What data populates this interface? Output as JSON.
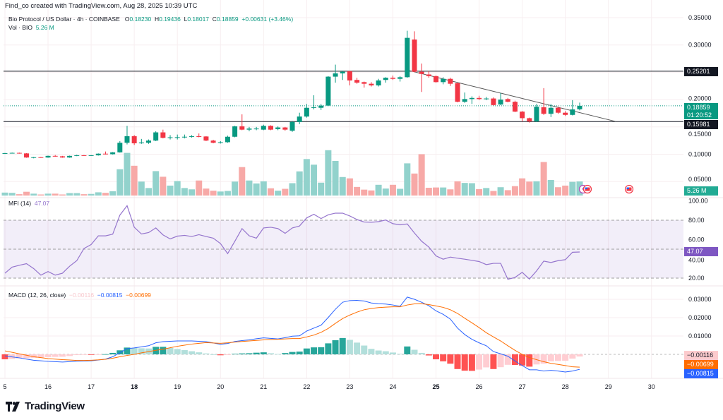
{
  "header": {
    "attribution": "Find_co created with TradingView.com, Aug 28, 2025 10:39 UTC",
    "symbol": "Bio Protocol / US Dollar · 4h · COINBASE",
    "o_label": "O",
    "o": "0.18230",
    "h_label": "H",
    "h": "0.19436",
    "l_label": "L",
    "l": "0.18017",
    "c_label": "C",
    "c": "0.18859",
    "change": "+0.00631 (+3.46%)",
    "vol_label": "Vol · BIO",
    "vol": "5.26 M"
  },
  "price_axis": {
    "ticks": [
      "0.35000",
      "0.30000",
      "0.20000",
      "0.15000",
      "0.10000",
      "0.05000"
    ],
    "resistance": "0.25201",
    "support": "0.15981",
    "last_price": "0.18859",
    "countdown": "01:20:52",
    "volume_badge": "5.26 M"
  },
  "mfi": {
    "label": "MFI (14)",
    "value": "47.07",
    "ticks": [
      "100.00",
      "80.00",
      "60.00",
      "40.00",
      "20.00"
    ]
  },
  "macd": {
    "label": "MACD (12, 26, close)",
    "histogram": "−0.00116",
    "macd": "−0.00815",
    "signal": "−0.00699",
    "ticks": [
      "0.03000",
      "0.02000",
      "0.01000"
    ]
  },
  "x_axis": {
    "ticks": [
      "5",
      "16",
      "17",
      "18",
      "19",
      "20",
      "21",
      "22",
      "23",
      "24",
      "25",
      "26",
      "27",
      "28",
      "29",
      "30"
    ],
    "bold": [
      "18",
      "25"
    ]
  },
  "footer": {
    "brand": "TradingView"
  },
  "colors": {
    "up": "#089981",
    "down": "#f23645",
    "mfi": "#9575cd",
    "macd": "#2962ff",
    "signal": "#ff6d00"
  },
  "icons": [
    "lightning-icon",
    "us-flag-icon"
  ],
  "chart_data": [
    {
      "type": "candlestick",
      "title": "Bio Protocol / US Dollar · 4h · COINBASE",
      "interval": "4h",
      "x_start": "Aug 15",
      "ylim": [
        0.04,
        0.36
      ],
      "horizontal_levels": [
        0.25201,
        0.15981
      ],
      "trendline": [
        [
          56,
          0.254
        ],
        [
          85,
          0.16
        ]
      ],
      "ohlc": [
        [
          0.101,
          0.1025,
          0.1005,
          0.102
        ],
        [
          0.102,
          0.103,
          0.1015,
          0.1025
        ],
        [
          0.1025,
          0.103,
          0.101,
          0.1015
        ],
        [
          0.1015,
          0.102,
          0.0935,
          0.094
        ],
        [
          0.0935,
          0.095,
          0.0925,
          0.0945
        ],
        [
          0.0945,
          0.095,
          0.0935,
          0.094
        ],
        [
          0.094,
          0.0975,
          0.0935,
          0.097
        ],
        [
          0.097,
          0.0985,
          0.0955,
          0.0962
        ],
        [
          0.0962,
          0.097,
          0.0935,
          0.094
        ],
        [
          0.094,
          0.0975,
          0.0935,
          0.097
        ],
        [
          0.097,
          0.099,
          0.0965,
          0.098
        ],
        [
          0.098,
          0.0985,
          0.097,
          0.0975
        ],
        [
          0.0975,
          0.0985,
          0.097,
          0.098
        ],
        [
          0.098,
          0.1015,
          0.0975,
          0.101
        ],
        [
          0.101,
          0.105,
          0.0995,
          0.1
        ],
        [
          0.1,
          0.104,
          0.0995,
          0.1035
        ],
        [
          0.1035,
          0.124,
          0.103,
          0.121
        ],
        [
          0.121,
          0.152,
          0.118,
          0.133
        ],
        [
          0.133,
          0.135,
          0.117,
          0.12
        ],
        [
          0.12,
          0.128,
          0.119,
          0.1215
        ],
        [
          0.121,
          0.127,
          0.119,
          0.125
        ],
        [
          0.125,
          0.142,
          0.124,
          0.14
        ],
        [
          0.14,
          0.145,
          0.129,
          0.13
        ],
        [
          0.13,
          0.135,
          0.127,
          0.131
        ],
        [
          0.131,
          0.136,
          0.127,
          0.1312
        ],
        [
          0.1312,
          0.136,
          0.129,
          0.132
        ],
        [
          0.132,
          0.135,
          0.1305,
          0.133
        ],
        [
          0.133,
          0.138,
          0.131,
          0.1325
        ],
        [
          0.1325,
          0.133,
          0.124,
          0.125
        ],
        [
          0.125,
          0.1265,
          0.12,
          0.121
        ],
        [
          0.121,
          0.124,
          0.1195,
          0.122
        ],
        [
          0.122,
          0.134,
          0.121,
          0.132
        ],
        [
          0.132,
          0.152,
          0.131,
          0.151
        ],
        [
          0.151,
          0.173,
          0.144,
          0.145
        ],
        [
          0.145,
          0.15,
          0.142,
          0.147
        ],
        [
          0.147,
          0.15,
          0.144,
          0.147
        ],
        [
          0.145,
          0.154,
          0.144,
          0.152
        ],
        [
          0.152,
          0.153,
          0.144,
          0.145
        ],
        [
          0.146,
          0.151,
          0.144,
          0.149
        ],
        [
          0.149,
          0.15,
          0.143,
          0.145
        ],
        [
          0.143,
          0.161,
          0.141,
          0.159
        ],
        [
          0.159,
          0.176,
          0.155,
          0.169
        ],
        [
          0.169,
          0.192,
          0.167,
          0.185
        ],
        [
          0.185,
          0.208,
          0.182,
          0.186
        ],
        [
          0.185,
          0.192,
          0.181,
          0.189
        ],
        [
          0.189,
          0.243,
          0.188,
          0.242
        ],
        [
          0.242,
          0.264,
          0.231,
          0.248
        ],
        [
          0.248,
          0.253,
          0.236,
          0.251
        ],
        [
          0.252,
          0.252,
          0.226,
          0.235
        ],
        [
          0.236,
          0.24,
          0.229,
          0.231
        ],
        [
          0.232,
          0.233,
          0.222,
          0.229
        ],
        [
          0.229,
          0.232,
          0.224,
          0.226
        ],
        [
          0.226,
          0.238,
          0.224,
          0.235
        ],
        [
          0.236,
          0.241,
          0.231,
          0.24
        ],
        [
          0.24,
          0.244,
          0.236,
          0.238
        ],
        [
          0.238,
          0.243,
          0.233,
          0.241
        ],
        [
          0.241,
          0.326,
          0.24,
          0.313
        ],
        [
          0.31,
          0.325,
          0.25,
          0.251
        ],
        [
          0.251,
          0.266,
          0.214,
          0.247
        ],
        [
          0.246,
          0.252,
          0.24,
          0.243
        ],
        [
          0.243,
          0.244,
          0.231,
          0.232
        ],
        [
          0.232,
          0.241,
          0.228,
          0.238
        ],
        [
          0.238,
          0.24,
          0.225,
          0.229
        ],
        [
          0.23,
          0.231,
          0.195,
          0.196
        ],
        [
          0.196,
          0.213,
          0.194,
          0.201
        ],
        [
          0.201,
          0.206,
          0.192,
          0.203
        ],
        [
          0.203,
          0.207,
          0.199,
          0.201
        ],
        [
          0.202,
          0.205,
          0.199,
          0.202
        ],
        [
          0.202,
          0.204,
          0.189,
          0.19
        ],
        [
          0.191,
          0.212,
          0.19,
          0.2
        ],
        [
          0.201,
          0.203,
          0.195,
          0.196
        ],
        [
          0.196,
          0.198,
          0.177,
          0.178
        ],
        [
          0.178,
          0.179,
          0.16,
          0.166
        ],
        [
          0.166,
          0.167,
          0.158,
          0.16
        ],
        [
          0.16,
          0.192,
          0.159,
          0.187
        ],
        [
          0.186,
          0.221,
          0.172,
          0.174
        ],
        [
          0.174,
          0.192,
          0.168,
          0.185
        ],
        [
          0.185,
          0.187,
          0.174,
          0.176
        ],
        [
          0.176,
          0.179,
          0.17,
          0.172
        ],
        [
          0.172,
          0.199,
          0.171,
          0.182
        ],
        [
          0.1823,
          0.1944,
          0.1802,
          0.1886
        ]
      ],
      "volume_millions": [
        1.1,
        1.0,
        0.5,
        1.4,
        0.7,
        0.4,
        0.7,
        0.7,
        0.4,
        0.9,
        0.9,
        0.5,
        0.6,
        1.2,
        1.0,
        1.6,
        9.8,
        15.9,
        11.1,
        5.2,
        2.8,
        9.1,
        7.0,
        3.7,
        5.4,
        2.8,
        2.3,
        5.6,
        2.6,
        1.8,
        1.5,
        1.7,
        5.2,
        10.6,
        5.6,
        4.5,
        5.3,
        2.7,
        1.8,
        2.5,
        4.6,
        9.0,
        13.6,
        11.5,
        4.8,
        16.9,
        12.9,
        6.9,
        6.4,
        3.2,
        2.2,
        1.9,
        4.0,
        2.6,
        4.0,
        2.5,
        12.0,
        8.2,
        15.4,
        2.9,
        3.0,
        3.0,
        2.3,
        5.3,
        4.7,
        4.6,
        2.4,
        2.8,
        1.7,
        3.1,
        2.0,
        3.5,
        6.4,
        5.2,
        5.3,
        12.5,
        5.8,
        3.1,
        3.7,
        5.1,
        5.26
      ]
    },
    {
      "type": "line",
      "title": "MFI (14)",
      "ylim": [
        10,
        105
      ],
      "levels": [
        80,
        50,
        20
      ],
      "values": [
        25.1,
        31.4,
        33.3,
        35.0,
        29.9,
        23.1,
        26.8,
        23.1,
        25.1,
        32.3,
        38.1,
        50.7,
        54.8,
        63.8,
        63.8,
        65.5,
        85.3,
        95.0,
        72.7,
        65.7,
        67.2,
        72.0,
        64.8,
        60.6,
        63.5,
        64.3,
        63.1,
        65.0,
        63.1,
        61.4,
        55.8,
        45.4,
        58.2,
        71.3,
        63.8,
        61.4,
        72.0,
        72.7,
        71.3,
        66.4,
        72.0,
        74.0,
        82.4,
        86.1,
        81.7,
        85.6,
        87.3,
        87.3,
        84.4,
        80.7,
        78.1,
        77.8,
        78.5,
        80.2,
        76.4,
        75.2,
        76.1,
        66.7,
        58.2,
        52.2,
        43.0,
        39.6,
        41.8,
        40.6,
        39.6,
        38.4,
        37.2,
        34.0,
        35.3,
        35.3,
        18.8,
        20.7,
        26.0,
        19.0,
        27.5,
        37.6,
        36.2,
        38.1,
        39.1,
        46.8,
        47.07
      ]
    },
    {
      "type": "line",
      "title": "MACD (12, 26, close)",
      "series": [
        {
          "values": [
            -0.0008,
            -0.0014,
            -0.0019,
            -0.0026,
            -0.0032,
            -0.0035,
            -0.0038,
            -0.004,
            -0.0042,
            -0.004,
            -0.0037,
            -0.0036,
            -0.0035,
            -0.0031,
            -0.0026,
            -0.0013,
            0.0009,
            0.0031,
            0.0035,
            0.0041,
            0.0047,
            0.0063,
            0.0069,
            0.0071,
            0.0073,
            0.0073,
            0.0073,
            0.0071,
            0.0069,
            0.0062,
            0.0055,
            0.0059,
            0.007,
            0.0075,
            0.0079,
            0.0085,
            0.009,
            0.0087,
            0.0084,
            0.0091,
            0.0099,
            0.0101,
            0.0127,
            0.0143,
            0.0159,
            0.0201,
            0.0246,
            0.0284,
            0.0293,
            0.0294,
            0.0291,
            0.028,
            0.0276,
            0.0274,
            0.0269,
            0.0262,
            0.0312,
            0.03,
            0.0284,
            0.0265,
            0.0237,
            0.0218,
            0.0192,
            0.0143,
            0.0108,
            0.0082,
            0.0063,
            0.0047,
            0.0015,
            0.0003,
            -0.001,
            -0.0036,
            -0.0061,
            -0.0084,
            -0.0084,
            -0.0091,
            -0.0087,
            -0.0091,
            -0.0096,
            -0.0091,
            -0.00815
          ]
        },
        {
          "values": [
            0.0019,
            0.0011,
            0.0003,
            -0.0005,
            -0.0013,
            -0.0018,
            -0.0023,
            -0.0026,
            -0.0029,
            -0.0031,
            -0.0033,
            -0.0033,
            -0.0032,
            -0.003,
            -0.0027,
            -0.0021,
            -0.0013,
            -0.0006,
            0.0,
            0.0008,
            0.0015,
            0.0022,
            0.0028,
            0.0036,
            0.0044,
            0.005,
            0.0056,
            0.006,
            0.0064,
            0.0062,
            0.006,
            0.0063,
            0.0067,
            0.007,
            0.0073,
            0.0076,
            0.0079,
            0.0081,
            0.0082,
            0.0084,
            0.0086,
            0.0086,
            0.0095,
            0.0105,
            0.012,
            0.0141,
            0.0169,
            0.0195,
            0.0214,
            0.023,
            0.0243,
            0.025,
            0.0255,
            0.0257,
            0.0259,
            0.0259,
            0.0269,
            0.0275,
            0.0276,
            0.0271,
            0.0264,
            0.0256,
            0.0243,
            0.0223,
            0.0197,
            0.0172,
            0.0146,
            0.0118,
            0.0095,
            0.0073,
            0.0047,
            0.0022,
            0,
            -0.0017,
            -0.0029,
            -0.004,
            -0.0049,
            -0.0055,
            -0.0061,
            -0.0068,
            -0.00699
          ]
        }
      ]
    }
  ]
}
